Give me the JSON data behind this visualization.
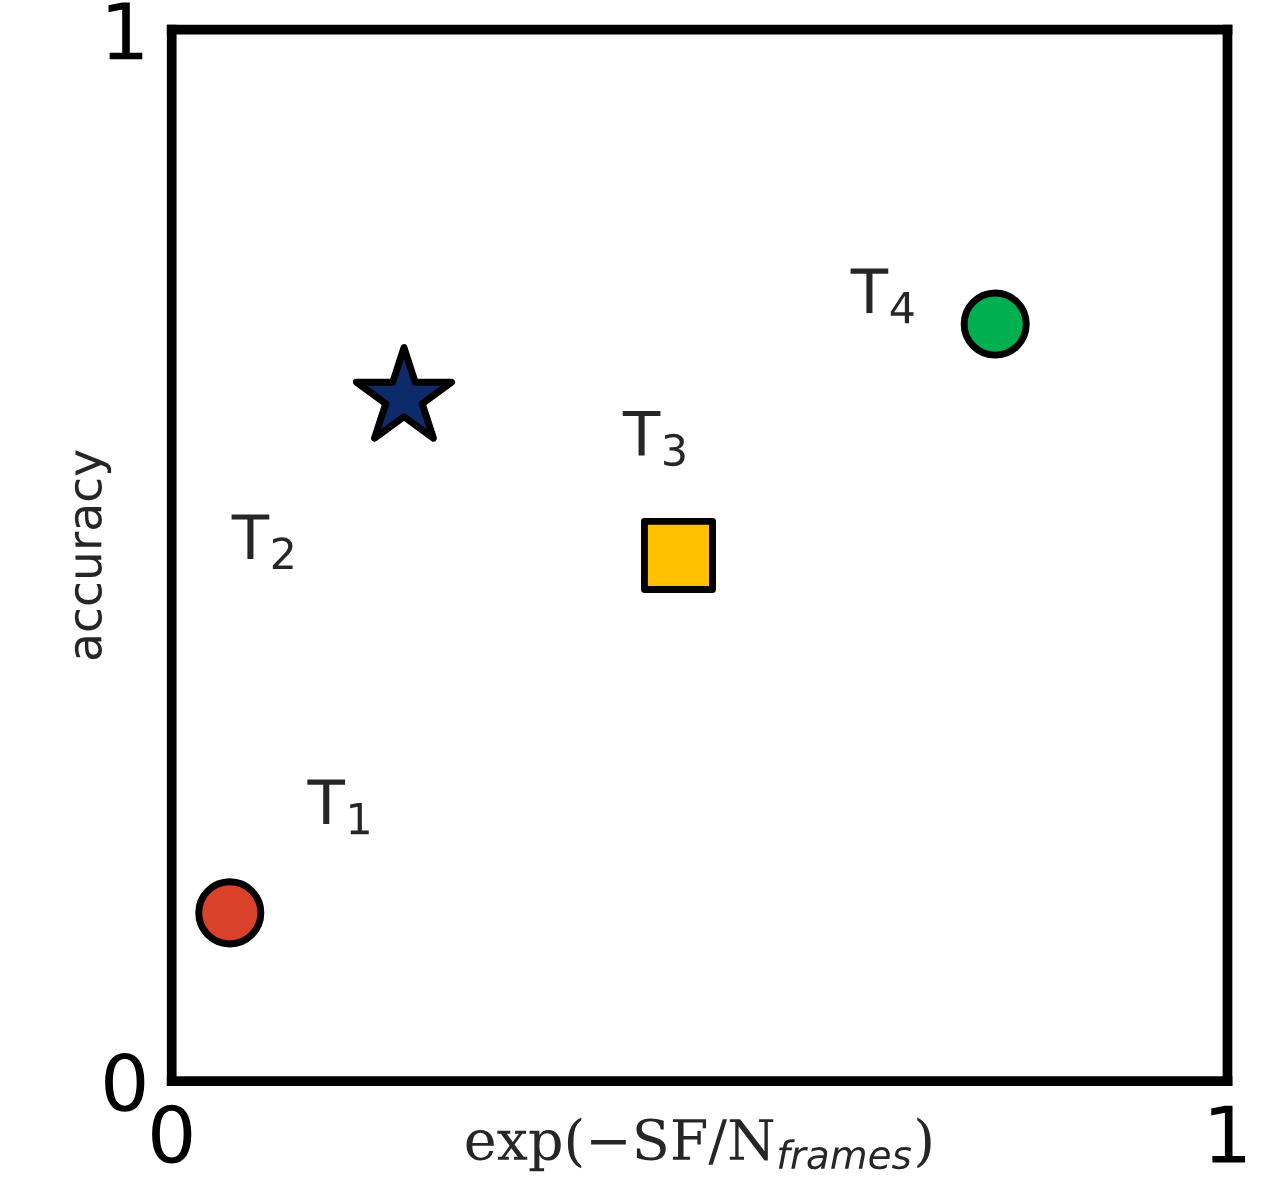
{
  "chart_data": {
    "type": "scatter",
    "xlabel": "exp(−SF/N$_{frames}$)",
    "ylabel": "accuracy",
    "xlim": [
      0,
      1
    ],
    "ylim": [
      0,
      1
    ],
    "xticks": [
      0,
      1
    ],
    "yticks": [
      0,
      1
    ],
    "series": [
      {
        "name": "T$_{1}$",
        "color": "#d9412b",
        "marker": "circle",
        "x": [
          0.055
        ],
        "values": [
          0.16
        ]
      },
      {
        "name": "T$_{2}$",
        "color": "#0d2a6b",
        "marker": "star",
        "x": [
          0.22
        ],
        "values": [
          0.65
        ]
      },
      {
        "name": "T$_{3}$",
        "color": "#ffc000",
        "marker": "square",
        "x": [
          0.48
        ],
        "values": [
          0.5
        ]
      },
      {
        "name": "T$_{4}$",
        "color": "#00b050",
        "marker": "circle",
        "x": [
          0.78
        ],
        "values": [
          0.72
        ]
      }
    ]
  }
}
